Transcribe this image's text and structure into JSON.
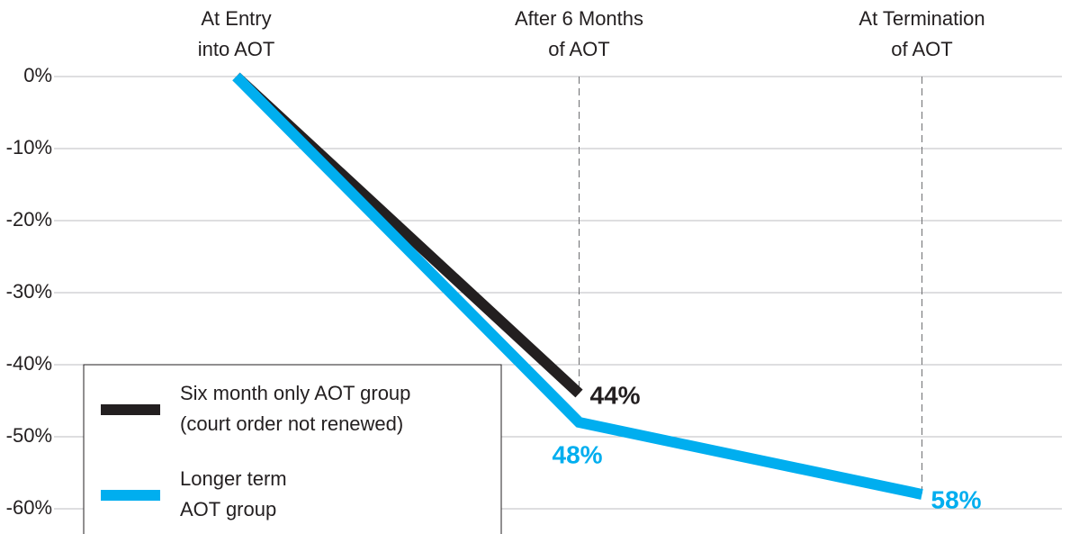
{
  "chart_data": {
    "type": "line",
    "categories": [
      [
        "At Entry",
        "into AOT"
      ],
      [
        "After 6 Months",
        "of AOT"
      ],
      [
        "At Termination",
        "of AOT"
      ]
    ],
    "series": [
      {
        "name": [
          "Six month only AOT group",
          "(court order not renewed)"
        ],
        "color": "#231f20",
        "values": [
          0,
          -44,
          null
        ],
        "value_labels": [
          null,
          "44%",
          null
        ]
      },
      {
        "name": [
          "Longer term",
          "AOT group"
        ],
        "color": "#00aeef",
        "values": [
          0,
          -48,
          -58
        ],
        "value_labels": [
          null,
          "48%",
          "58%"
        ]
      }
    ],
    "ylim": [
      -63.5,
      0
    ],
    "yticks": [
      {
        "value": 0,
        "label": "0%"
      },
      {
        "value": -10,
        "label": "-10%"
      },
      {
        "value": -20,
        "label": "-20%"
      },
      {
        "value": -30,
        "label": "-30%"
      },
      {
        "value": -40,
        "label": "-40%"
      },
      {
        "value": -50,
        "label": "-50%"
      },
      {
        "value": -60,
        "label": "-60%"
      }
    ],
    "grid": true
  }
}
